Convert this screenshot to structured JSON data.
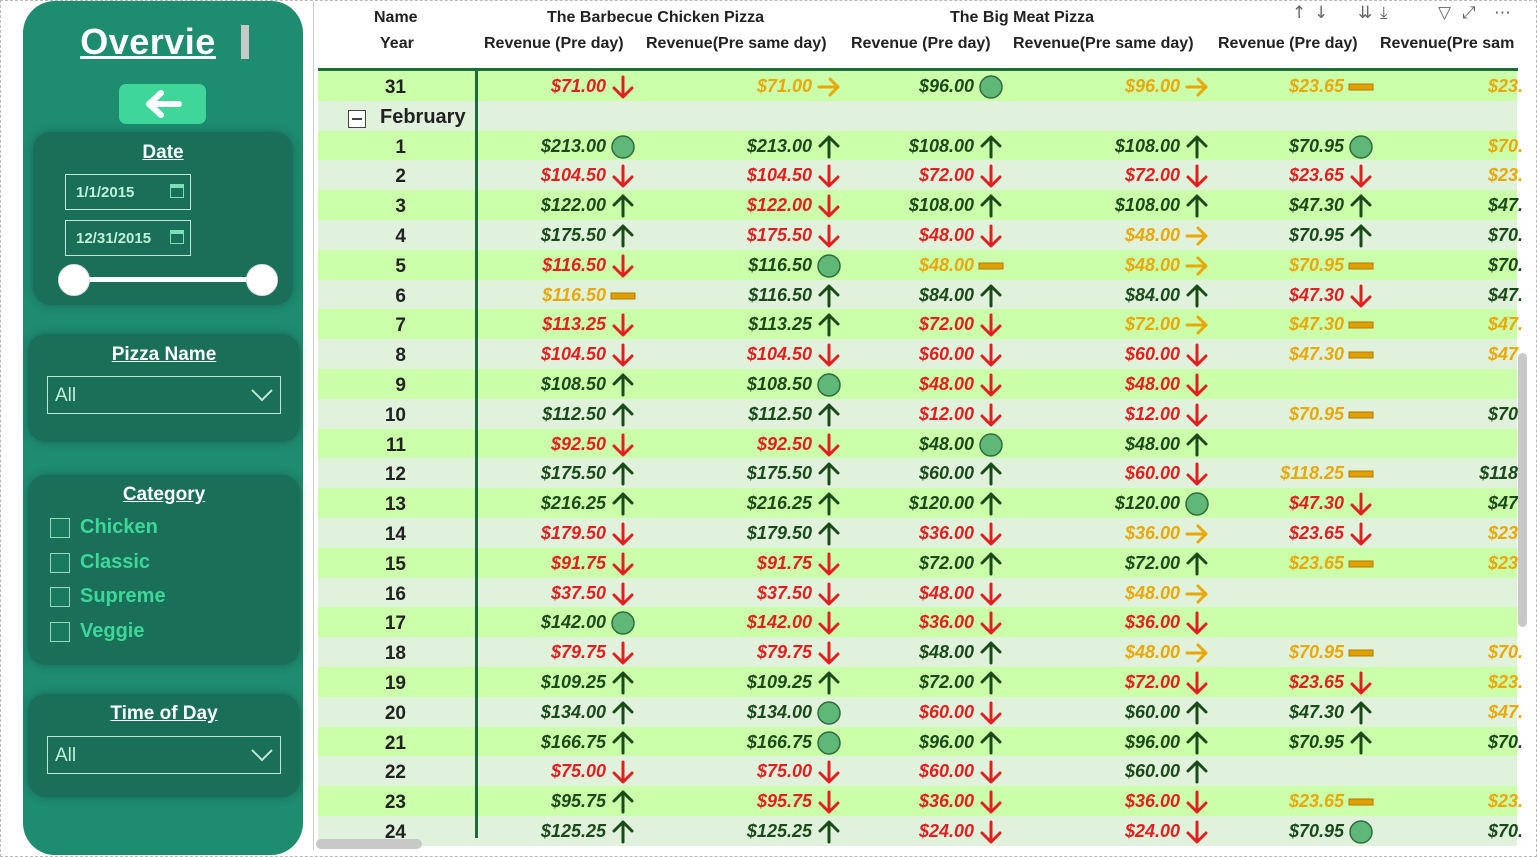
{
  "sidebar": {
    "title": "Overvie",
    "date_filter": {
      "label": "Date",
      "start": "1/1/2015",
      "end": "12/31/2015"
    },
    "pizza_name_filter": {
      "label": "Pizza Name",
      "value": "All"
    },
    "category_filter": {
      "label": "Category",
      "options": [
        "Chicken",
        "Classic",
        "Supreme",
        "Veggie"
      ]
    },
    "time_of_day_filter": {
      "label": "Time of Day",
      "value": "All"
    }
  },
  "table": {
    "header_row1": {
      "name_label": "Name",
      "pizza1": "The Barbecue Chicken Pizza",
      "pizza2": "The Big Meat Pizza"
    },
    "header_row2": {
      "year_label": "Year",
      "col1": "Revenue (Pre day)",
      "col2": "Revenue(Pre same day)",
      "col3": "Revenue (Pre day)",
      "col4": "Revenue(Pre same day)",
      "col5": "Revenue (Pre day)",
      "col6": "Revenue(Pre sam"
    },
    "month_label": "February",
    "colors": {
      "red": "#e02020",
      "green": "#1a4a1a",
      "yellow": "#e8a800",
      "row_green": "#ccffaa",
      "row_grey": "#e1f2dc",
      "sidebar": "#1e8c6f",
      "card": "#196f58",
      "accent": "#3fd69a"
    },
    "rows": [
      {
        "day": "31",
        "cells": [
          [
            "$71.00",
            "red",
            "down"
          ],
          [
            "$71.00",
            "yellow",
            "right"
          ],
          [
            "$96.00",
            "green",
            "circle"
          ],
          [
            "$96.00",
            "yellow",
            "right"
          ],
          [
            "$23.65",
            "yellow",
            "dash"
          ],
          [
            "$23.",
            "yellow",
            ""
          ]
        ]
      },
      {
        "day": "1",
        "cells": [
          [
            "$213.00",
            "green",
            "circle"
          ],
          [
            "$213.00",
            "green",
            "up"
          ],
          [
            "$108.00",
            "green",
            "up"
          ],
          [
            "$108.00",
            "green",
            "up"
          ],
          [
            "$70.95",
            "green",
            "circle"
          ],
          [
            "$70.",
            "yellow",
            ""
          ]
        ]
      },
      {
        "day": "2",
        "cells": [
          [
            "$104.50",
            "red",
            "down"
          ],
          [
            "$104.50",
            "red",
            "down"
          ],
          [
            "$72.00",
            "red",
            "down"
          ],
          [
            "$72.00",
            "red",
            "down"
          ],
          [
            "$23.65",
            "red",
            "down"
          ],
          [
            "$23.",
            "yellow",
            ""
          ]
        ]
      },
      {
        "day": "3",
        "cells": [
          [
            "$122.00",
            "green",
            "up"
          ],
          [
            "$122.00",
            "red",
            "down"
          ],
          [
            "$108.00",
            "green",
            "up"
          ],
          [
            "$108.00",
            "green",
            "up"
          ],
          [
            "$47.30",
            "green",
            "up"
          ],
          [
            "$47.",
            "green",
            ""
          ]
        ]
      },
      {
        "day": "4",
        "cells": [
          [
            "$175.50",
            "green",
            "up"
          ],
          [
            "$175.50",
            "red",
            "down"
          ],
          [
            "$48.00",
            "red",
            "down"
          ],
          [
            "$48.00",
            "yellow",
            "right"
          ],
          [
            "$70.95",
            "green",
            "up"
          ],
          [
            "$70.",
            "green",
            ""
          ]
        ]
      },
      {
        "day": "5",
        "cells": [
          [
            "$116.50",
            "red",
            "down"
          ],
          [
            "$116.50",
            "green",
            "circle"
          ],
          [
            "$48.00",
            "yellow",
            "dash"
          ],
          [
            "$48.00",
            "yellow",
            "right"
          ],
          [
            "$70.95",
            "yellow",
            "dash"
          ],
          [
            "$70.",
            "green",
            ""
          ]
        ]
      },
      {
        "day": "6",
        "cells": [
          [
            "$116.50",
            "yellow",
            "dash"
          ],
          [
            "$116.50",
            "green",
            "up"
          ],
          [
            "$84.00",
            "green",
            "up"
          ],
          [
            "$84.00",
            "green",
            "up"
          ],
          [
            "$47.30",
            "red",
            "down"
          ],
          [
            "$47.",
            "green",
            ""
          ]
        ]
      },
      {
        "day": "7",
        "cells": [
          [
            "$113.25",
            "red",
            "down"
          ],
          [
            "$113.25",
            "green",
            "up"
          ],
          [
            "$72.00",
            "red",
            "down"
          ],
          [
            "$72.00",
            "yellow",
            "right"
          ],
          [
            "$47.30",
            "yellow",
            "dash"
          ],
          [
            "$47.",
            "yellow",
            ""
          ]
        ]
      },
      {
        "day": "8",
        "cells": [
          [
            "$104.50",
            "red",
            "down"
          ],
          [
            "$104.50",
            "red",
            "down"
          ],
          [
            "$60.00",
            "red",
            "down"
          ],
          [
            "$60.00",
            "red",
            "down"
          ],
          [
            "$47.30",
            "yellow",
            "dash"
          ],
          [
            "$47.",
            "yellow",
            ""
          ]
        ]
      },
      {
        "day": "9",
        "cells": [
          [
            "$108.50",
            "green",
            "up"
          ],
          [
            "$108.50",
            "green",
            "circle"
          ],
          [
            "$48.00",
            "red",
            "down"
          ],
          [
            "$48.00",
            "red",
            "down"
          ],
          [
            "",
            "",
            ""
          ],
          [
            "",
            "",
            ""
          ]
        ]
      },
      {
        "day": "10",
        "cells": [
          [
            "$112.50",
            "green",
            "up"
          ],
          [
            "$112.50",
            "green",
            "up"
          ],
          [
            "$12.00",
            "red",
            "down"
          ],
          [
            "$12.00",
            "red",
            "down"
          ],
          [
            "$70.95",
            "yellow",
            "dash"
          ],
          [
            "$70.",
            "green",
            ""
          ]
        ]
      },
      {
        "day": "11",
        "cells": [
          [
            "$92.50",
            "red",
            "down"
          ],
          [
            "$92.50",
            "red",
            "down"
          ],
          [
            "$48.00",
            "green",
            "circle"
          ],
          [
            "$48.00",
            "green",
            "up"
          ],
          [
            "",
            "",
            ""
          ],
          [
            "",
            "",
            ""
          ]
        ]
      },
      {
        "day": "12",
        "cells": [
          [
            "$175.50",
            "green",
            "up"
          ],
          [
            "$175.50",
            "green",
            "up"
          ],
          [
            "$60.00",
            "green",
            "up"
          ],
          [
            "$60.00",
            "red",
            "down"
          ],
          [
            "$118.25",
            "yellow",
            "dash"
          ],
          [
            "$118.",
            "green",
            ""
          ]
        ]
      },
      {
        "day": "13",
        "cells": [
          [
            "$216.25",
            "green",
            "up"
          ],
          [
            "$216.25",
            "green",
            "up"
          ],
          [
            "$120.00",
            "green",
            "up"
          ],
          [
            "$120.00",
            "green",
            "circle"
          ],
          [
            "$47.30",
            "red",
            "down"
          ],
          [
            "$47.",
            "green",
            ""
          ]
        ]
      },
      {
        "day": "14",
        "cells": [
          [
            "$179.50",
            "red",
            "down"
          ],
          [
            "$179.50",
            "green",
            "up"
          ],
          [
            "$36.00",
            "red",
            "down"
          ],
          [
            "$36.00",
            "yellow",
            "right"
          ],
          [
            "$23.65",
            "red",
            "down"
          ],
          [
            "$23.",
            "yellow",
            ""
          ]
        ]
      },
      {
        "day": "15",
        "cells": [
          [
            "$91.75",
            "red",
            "down"
          ],
          [
            "$91.75",
            "red",
            "down"
          ],
          [
            "$72.00",
            "green",
            "up"
          ],
          [
            "$72.00",
            "green",
            "up"
          ],
          [
            "$23.65",
            "yellow",
            "dash"
          ],
          [
            "$23.",
            "yellow",
            ""
          ]
        ]
      },
      {
        "day": "16",
        "cells": [
          [
            "$37.50",
            "red",
            "down"
          ],
          [
            "$37.50",
            "red",
            "down"
          ],
          [
            "$48.00",
            "red",
            "down"
          ],
          [
            "$48.00",
            "yellow",
            "right"
          ],
          [
            "",
            "",
            ""
          ],
          [
            "",
            "",
            ""
          ]
        ]
      },
      {
        "day": "17",
        "cells": [
          [
            "$142.00",
            "green",
            "circle"
          ],
          [
            "$142.00",
            "red",
            "down"
          ],
          [
            "$36.00",
            "red",
            "down"
          ],
          [
            "$36.00",
            "red",
            "down"
          ],
          [
            "",
            "",
            ""
          ],
          [
            "",
            "",
            ""
          ]
        ]
      },
      {
        "day": "18",
        "cells": [
          [
            "$79.75",
            "red",
            "down"
          ],
          [
            "$79.75",
            "red",
            "down"
          ],
          [
            "$48.00",
            "green",
            "up"
          ],
          [
            "$48.00",
            "yellow",
            "right"
          ],
          [
            "$70.95",
            "yellow",
            "dash"
          ],
          [
            "$70.",
            "yellow",
            ""
          ]
        ]
      },
      {
        "day": "19",
        "cells": [
          [
            "$109.25",
            "green",
            "up"
          ],
          [
            "$109.25",
            "green",
            "up"
          ],
          [
            "$72.00",
            "green",
            "up"
          ],
          [
            "$72.00",
            "red",
            "down"
          ],
          [
            "$23.65",
            "red",
            "down"
          ],
          [
            "$23.",
            "yellow",
            ""
          ]
        ]
      },
      {
        "day": "20",
        "cells": [
          [
            "$134.00",
            "green",
            "up"
          ],
          [
            "$134.00",
            "green",
            "circle"
          ],
          [
            "$60.00",
            "red",
            "down"
          ],
          [
            "$60.00",
            "green",
            "up"
          ],
          [
            "$47.30",
            "green",
            "up"
          ],
          [
            "$47.",
            "yellow",
            ""
          ]
        ]
      },
      {
        "day": "21",
        "cells": [
          [
            "$166.75",
            "green",
            "up"
          ],
          [
            "$166.75",
            "green",
            "circle"
          ],
          [
            "$96.00",
            "green",
            "up"
          ],
          [
            "$96.00",
            "green",
            "up"
          ],
          [
            "$70.95",
            "green",
            "up"
          ],
          [
            "$70.",
            "green",
            ""
          ]
        ]
      },
      {
        "day": "22",
        "cells": [
          [
            "$75.00",
            "red",
            "down"
          ],
          [
            "$75.00",
            "red",
            "down"
          ],
          [
            "$60.00",
            "red",
            "down"
          ],
          [
            "$60.00",
            "green",
            "up"
          ],
          [
            "",
            "",
            ""
          ],
          [
            "",
            "",
            ""
          ]
        ]
      },
      {
        "day": "23",
        "cells": [
          [
            "$95.75",
            "green",
            "up"
          ],
          [
            "$95.75",
            "red",
            "down"
          ],
          [
            "$36.00",
            "red",
            "down"
          ],
          [
            "$36.00",
            "red",
            "down"
          ],
          [
            "$23.65",
            "yellow",
            "dash"
          ],
          [
            "$23.",
            "yellow",
            ""
          ]
        ]
      },
      {
        "day": "24",
        "cells": [
          [
            "$125.25",
            "green",
            "up"
          ],
          [
            "$125.25",
            "green",
            "up"
          ],
          [
            "$24.00",
            "red",
            "down"
          ],
          [
            "$24.00",
            "red",
            "down"
          ],
          [
            "$70.95",
            "green",
            "circle"
          ],
          [
            "$70.",
            "green",
            ""
          ]
        ]
      }
    ]
  }
}
